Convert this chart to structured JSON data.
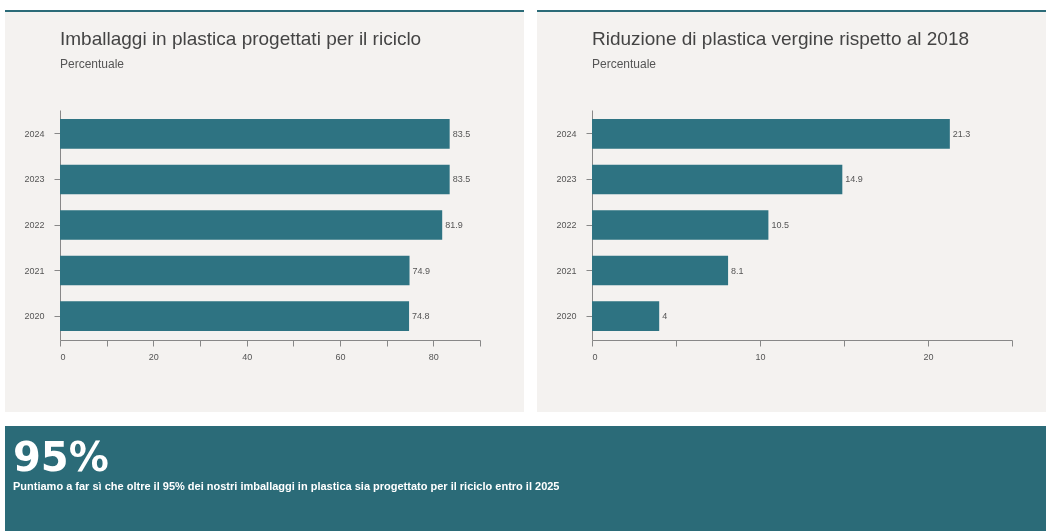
{
  "chart_data": [
    {
      "type": "bar",
      "orientation": "horizontal",
      "title": "Imballaggi in plastica progettati per il riciclo",
      "subtitle": "Percentuale",
      "categories": [
        "2024",
        "2023",
        "2022",
        "2021",
        "2020"
      ],
      "values": [
        83.5,
        83.5,
        81.9,
        74.9,
        74.8
      ],
      "color": "#2e7382",
      "xlim": [
        0,
        90
      ],
      "xticks": [
        0,
        {
          "value": 10,
          "label": null
        },
        20,
        {
          "value": 30,
          "label": null
        },
        40,
        {
          "value": 50,
          "label": null
        },
        60,
        {
          "value": 70,
          "label": null
        },
        80,
        {
          "value": 90,
          "label": null
        }
      ],
      "data_labels": true
    },
    {
      "type": "bar",
      "orientation": "horizontal",
      "title": "Riduzione di plastica vergine rispetto al 2018",
      "subtitle": "Percentuale",
      "categories": [
        "2024",
        "2023",
        "2022",
        "2021",
        "2020"
      ],
      "values": [
        21.3,
        14.9,
        10.5,
        8.1,
        4
      ],
      "color": "#2e7382",
      "xlim": [
        0,
        25
      ],
      "xticks": [
        0,
        {
          "value": 5,
          "label": null
        },
        10,
        {
          "value": 15,
          "label": null
        },
        20,
        {
          "value": 25,
          "label": null
        }
      ],
      "data_labels": true
    },
    {
      "type": "other",
      "title": "95%",
      "subtitle": "Puntiamo a far sì che oltre il 95% dei nostri imballaggi in plastica sia progettato per il riciclo entro il 2025"
    }
  ]
}
